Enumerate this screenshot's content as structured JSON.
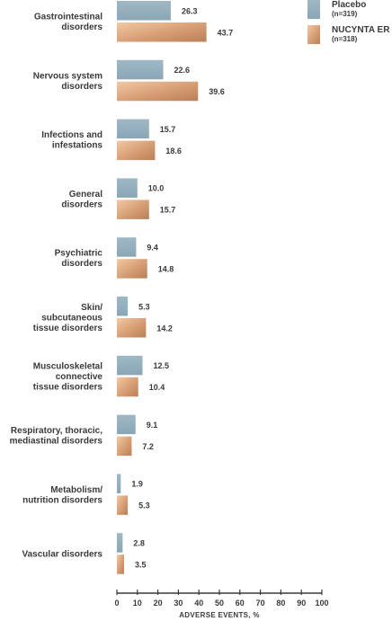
{
  "chart_data": {
    "type": "bar",
    "orientation": "horizontal",
    "categories": [
      [
        "Gastrointestinal",
        "disorders"
      ],
      [
        "Nervous system",
        "disorders"
      ],
      [
        "Infections and",
        "infestations"
      ],
      [
        "General",
        "disorders"
      ],
      [
        "Psychiatric",
        "disorders"
      ],
      [
        "Skin/",
        "subcutaneous",
        "tissue disorders"
      ],
      [
        "Musculoskeletal",
        "connective",
        "tissue disorders"
      ],
      [
        "Respiratory, thoracic,",
        "mediastinal disorders"
      ],
      [
        "Metabolism/",
        "nutrition disorders"
      ],
      [
        "Vascular disorders"
      ]
    ],
    "series": [
      {
        "name": "Placebo",
        "n_label": "(n=319)",
        "color": "#94afbd",
        "values": [
          26.3,
          22.6,
          15.7,
          10.0,
          9.4,
          5.3,
          12.5,
          9.1,
          1.9,
          2.8
        ],
        "labels": [
          "26.3",
          "22.6",
          "15.7",
          "10.0",
          "9.4",
          "5.3",
          "12.5",
          "9.1",
          "1.9",
          "2.8"
        ]
      },
      {
        "name": "NUCYNTA ER",
        "n_label": "(n=318)",
        "color": "#d9a47e",
        "values": [
          43.7,
          39.6,
          18.6,
          15.7,
          14.8,
          14.2,
          10.4,
          7.2,
          5.3,
          3.5
        ],
        "labels": [
          "43.7",
          "39.6",
          "18.6",
          "15.7",
          "14.8",
          "14.2",
          "10.4",
          "7.2",
          "5.3",
          "3.5"
        ]
      }
    ],
    "xlabel": "ADVERSE EVENTS, %",
    "xlim": [
      0,
      100
    ],
    "xticks": [
      0,
      10,
      20,
      30,
      40,
      50,
      60,
      70,
      80,
      90,
      100
    ],
    "grid": false,
    "legend_position": "top-right"
  }
}
